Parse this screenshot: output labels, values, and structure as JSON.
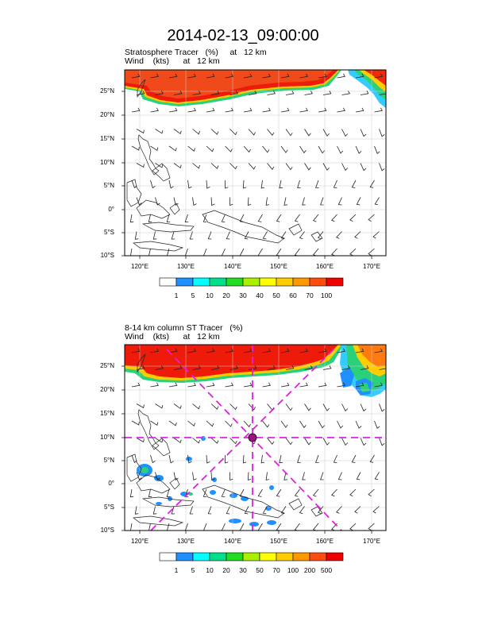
{
  "title": "2014-02-13_09:00:00",
  "panels": [
    {
      "subtitle1": "Stratosphere Tracer   (%)     at   12 km",
      "subtitle2": "Wind    (kts)      at   12 km",
      "lat_labels": [
        "25°N",
        "20°N",
        "15°N",
        "10°N",
        "5°N",
        "0°",
        "5°S",
        "10°S"
      ],
      "lon_labels": [
        "120°E",
        "130°E",
        "140°E",
        "150°E",
        "160°E",
        "170°E"
      ],
      "colorbar_labels": [
        "1",
        "5",
        "10",
        "20",
        "30",
        "40",
        "50",
        "60",
        "70",
        "100"
      ],
      "colorbar_colors": [
        "#ffffff",
        "#1e90ff",
        "#00ffff",
        "#00e08a",
        "#22dd22",
        "#aaf000",
        "#ffff00",
        "#ffcc00",
        "#ff9900",
        "#ff4d10",
        "#ee0000"
      ]
    },
    {
      "subtitle1": "8-14 km column ST Tracer   (%)",
      "subtitle2": "Wind    (kts)      at   12 km",
      "lat_labels": [
        "25°N",
        "20°N",
        "15°N",
        "10°N",
        "5°N",
        "0°",
        "5°S",
        "10°S"
      ],
      "lon_labels": [
        "120°E",
        "130°E",
        "140°E",
        "150°E",
        "160°E",
        "170°E"
      ],
      "colorbar_labels": [
        "1",
        "5",
        "10",
        "20",
        "30",
        "50",
        "70",
        "100",
        "200",
        "500"
      ],
      "colorbar_colors": [
        "#ffffff",
        "#1e90ff",
        "#00ffff",
        "#00e08a",
        "#22dd22",
        "#aaf000",
        "#ffff00",
        "#ffcc00",
        "#ff9900",
        "#ff4d10",
        "#ee0000"
      ]
    }
  ]
}
